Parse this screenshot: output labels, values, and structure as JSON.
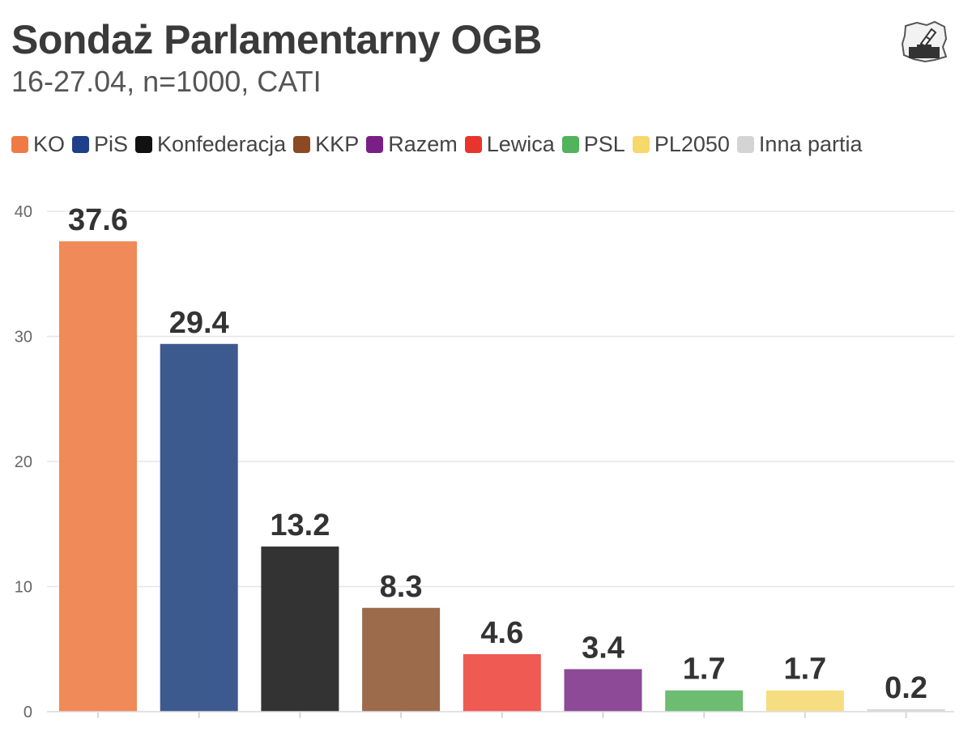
{
  "header": {
    "title": "Sondaż Parlamentarny OGB",
    "subtitle": "16-27.04, n=1000, CATI",
    "logo_icon": "poland-map-ballot-icon"
  },
  "chart_data": {
    "type": "bar",
    "title": "Sondaż Parlamentarny OGB",
    "subtitle": "16-27.04, n=1000, CATI",
    "xlabel": "",
    "ylabel": "",
    "categories": [
      "KO",
      "PiS",
      "Konfederacja",
      "KKP",
      "Lewica",
      "Razem",
      "PSL",
      "PL2050",
      "Inna partia"
    ],
    "values": [
      37.6,
      29.4,
      13.2,
      8.3,
      4.6,
      3.4,
      1.7,
      1.7,
      0.2
    ],
    "value_labels": [
      "37.6",
      "29.4",
      "13.2",
      "8.3",
      "4.6",
      "3.4",
      "1.7",
      "1.7",
      "0.2"
    ],
    "colors": [
      "#f08a58",
      "#3d5a8f",
      "#333333",
      "#9b6b4c",
      "#ef5a52",
      "#8c4a97",
      "#6cbd72",
      "#f7dd82",
      "#d9d9d9"
    ],
    "ylim": [
      0,
      40
    ],
    "yticks": [
      0,
      10,
      20,
      30,
      40
    ],
    "ytick_labels": [
      "0",
      "10",
      "20",
      "30",
      "40"
    ],
    "grid": true,
    "legend_position": "top",
    "legend": [
      {
        "label": "KO",
        "color": "#f07a45"
      },
      {
        "label": "PiS",
        "color": "#1f3f8a"
      },
      {
        "label": "Konfederacja",
        "color": "#111111"
      },
      {
        "label": "KKP",
        "color": "#8b4a22"
      },
      {
        "label": "Razem",
        "color": "#7a1f86"
      },
      {
        "label": "Lewica",
        "color": "#e8352c"
      },
      {
        "label": "PSL",
        "color": "#52b35d"
      },
      {
        "label": "PL2050",
        "color": "#f6d86b"
      },
      {
        "label": "Inna partia",
        "color": "#d4d4d4"
      }
    ]
  }
}
